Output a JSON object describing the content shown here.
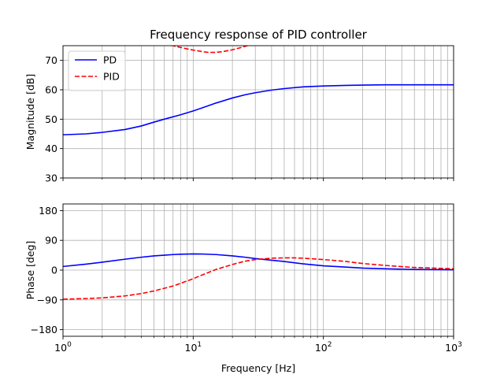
{
  "chart_data": {
    "type": "line",
    "title": "Frequency response of PID controller",
    "xscale": "log",
    "xlabel": "Frequency [Hz]",
    "xlim": [
      1,
      1000
    ],
    "x_tick_labels": [
      {
        "value": 1,
        "base": "10",
        "exp": "0"
      },
      {
        "value": 10,
        "base": "10",
        "exp": "1"
      },
      {
        "value": 100,
        "base": "10",
        "exp": "2"
      },
      {
        "value": 1000,
        "base": "10",
        "exp": "3"
      }
    ],
    "grid": true,
    "legend": {
      "placement": "top-left",
      "entries": [
        {
          "name": "PD",
          "color": "#0000ff",
          "dash": "solid"
        },
        {
          "name": "PID",
          "color": "#ff0000",
          "dash": "dashed"
        }
      ]
    },
    "panels": [
      {
        "name": "magnitude",
        "ylabel": "Magnitude [dB]",
        "ylim": [
          30,
          75
        ],
        "yticks": [
          30,
          40,
          50,
          60,
          70
        ],
        "series": [
          {
            "name": "PD",
            "color": "#0000ff",
            "x": [
              1,
              1.5,
              2,
              3,
              4,
              5,
              6,
              8,
              10,
              12,
              15,
              20,
              25,
              30,
              40,
              50,
              70,
              100,
              150,
              200,
              300,
              500,
              1000
            ],
            "y": [
              44.7,
              45.0,
              45.5,
              46.5,
              47.7,
              49.0,
              50.0,
              51.5,
              52.8,
              54.0,
              55.5,
              57.2,
              58.3,
              59.0,
              59.9,
              60.4,
              61.0,
              61.3,
              61.5,
              61.6,
              61.7,
              61.7,
              61.7
            ]
          },
          {
            "name": "PID",
            "color": "#ff0000",
            "x": [
              6,
              7,
              8,
              9,
              10,
              11,
              12,
              13,
              14,
              15,
              17,
              20,
              23,
              26,
              30
            ],
            "y": [
              75.5,
              75.0,
              74.4,
              73.9,
              73.5,
              73.2,
              72.9,
              72.75,
              72.7,
              72.75,
              73.0,
              73.6,
              74.3,
              75.0,
              75.6
            ]
          }
        ]
      },
      {
        "name": "phase",
        "ylabel": "Phase [deg]",
        "ylim": [
          -200,
          200
        ],
        "yticks": [
          -180,
          -90,
          0,
          90,
          180
        ],
        "ytick_labels": [
          "−180",
          "−90",
          "0",
          "90",
          "180"
        ],
        "series": [
          {
            "name": "PD",
            "color": "#0000ff",
            "x": [
              1,
              1.5,
              2,
              3,
              4,
              5,
              6,
              7,
              8,
              10,
              12,
              15,
              20,
              25,
              30,
              40,
              50,
              70,
              100,
              150,
              200,
              300,
              500,
              1000
            ],
            "y": [
              11,
              18,
              24,
              33,
              39,
              43,
              45,
              47,
              48,
              49,
              48.5,
              47,
              43,
              39,
              35,
              30,
              26,
              19,
              13,
              9,
              6,
              4,
              2,
              1
            ]
          },
          {
            "name": "PID",
            "color": "#ff0000",
            "x": [
              1,
              1.5,
              2,
              3,
              4,
              5,
              6,
              7,
              8,
              10,
              12,
              15,
              20,
              25,
              30,
              40,
              50,
              60,
              70,
              100,
              150,
              200,
              300,
              500,
              1000
            ],
            "y": [
              -88,
              -86,
              -84,
              -78,
              -71,
              -63,
              -55,
              -48,
              -40,
              -26,
              -13,
              2,
              17,
              27,
              32,
              36,
              37,
              37,
              36,
              32,
              26,
              20,
              14,
              8,
              4
            ]
          }
        ]
      }
    ]
  }
}
